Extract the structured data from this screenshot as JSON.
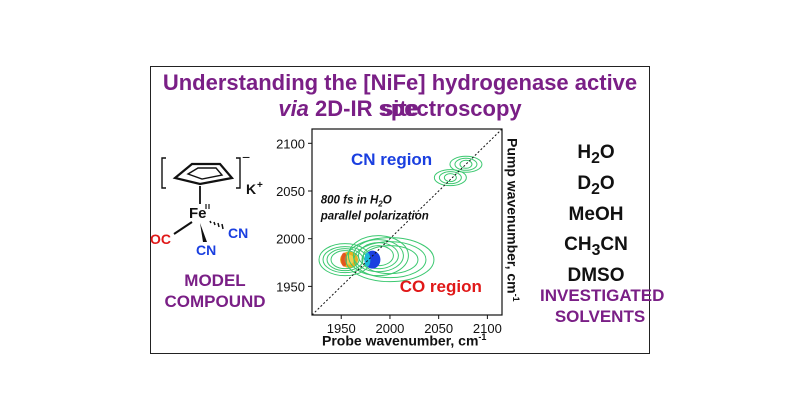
{
  "title": {
    "line1": "Understanding the [NiFe] hydrogenase active site",
    "line2_italic": "via",
    "line2_rest": " 2D-IR spectroscopy"
  },
  "molecule": {
    "charge": "−",
    "counterion": "K",
    "counterion_charge": "+",
    "metal": "Fe",
    "ligand_oc": "OC",
    "ligand_cn_1": "CN",
    "ligand_cn_2": "CN"
  },
  "left_label": [
    "MODEL",
    "COMPOUND"
  ],
  "right_label": [
    "INVESTIGATED",
    "SOLVENTS"
  ],
  "solvents": [
    {
      "main": "H",
      "sub": "2",
      "tail": "O"
    },
    {
      "main": "D",
      "sub": "2",
      "tail": "O"
    },
    {
      "main": "MeOH",
      "sub": "",
      "tail": ""
    },
    {
      "main": "CH",
      "sub": "3",
      "tail": "CN"
    },
    {
      "main": "DMSO",
      "sub": "",
      "tail": ""
    }
  ],
  "chart_data": {
    "type": "heatmap",
    "xlabel": "Probe wavenumber, cm",
    "xlabel_sup": "-1",
    "ylabel": "Pump wavenumber, cm",
    "ylabel_sup": "-1",
    "xlim": [
      1920,
      2115
    ],
    "ylim": [
      1920,
      2115
    ],
    "xticks": [
      1950,
      2000,
      2050,
      2100
    ],
    "yticks": [
      1950,
      2000,
      2050,
      2100
    ],
    "diagonal": true,
    "annotations": {
      "cn_region": "CN region",
      "co_region": "CO region",
      "note_line1": "800 fs in H",
      "note_sub": "2",
      "note_tail": "O",
      "note_line2": "parallel polarization"
    },
    "peaks": [
      {
        "x": 1958,
        "y": 1978,
        "sign": "positive",
        "amplitude": 1.0
      },
      {
        "x": 1982,
        "y": 1978,
        "sign": "negative",
        "amplitude": 1.0
      },
      {
        "x": 2000,
        "y": 1978,
        "sign": "weak",
        "amplitude": 0.3
      },
      {
        "x": 2062,
        "y": 2064,
        "sign": "weak",
        "amplitude": 0.2
      },
      {
        "x": 2078,
        "y": 2078,
        "sign": "weak",
        "amplitude": 0.2
      }
    ],
    "colors": {
      "positive": "#e8b020",
      "negative": "#1a3fe0",
      "contour": "#3cc870",
      "cn_label": "#1a3fe0",
      "co_label": "#e01818"
    }
  }
}
